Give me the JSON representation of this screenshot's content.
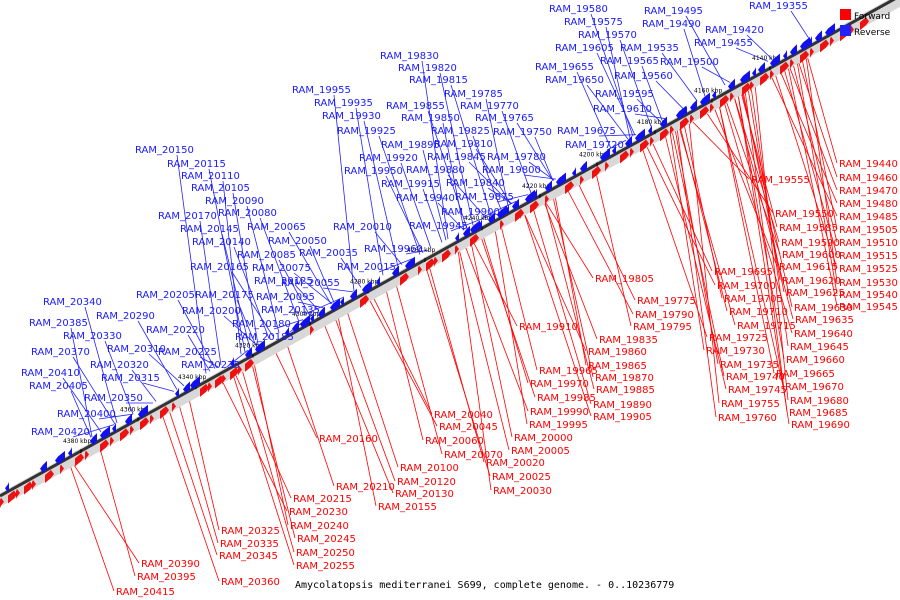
{
  "legend": [
    {
      "label": "Forward",
      "color": "#ff0000"
    },
    {
      "label": "Reverse",
      "color": "#2222ff"
    }
  ],
  "caption": "Amycolatopsis mediterranei S699, complete genome. - 0..10236779",
  "axis_ticks": [
    "4140 kbp",
    "4160 kbp",
    "4180 kbp",
    "4200 kbp",
    "4220 kbp",
    "4240 kbp",
    "4260 kbp",
    "4280 kbp",
    "4300 kbp",
    "4320 kbp",
    "4340 kbp",
    "4360 kbp",
    "4380 kbp"
  ],
  "reverse_genes": [
    "RAM_19355",
    "RAM_19420",
    "RAM_19455",
    "RAM_19495",
    "RAM_19490",
    "RAM_19500",
    "RAM_19535",
    "RAM_19580",
    "RAM_19575",
    "RAM_19570",
    "RAM_19605",
    "RAM_19565",
    "RAM_19560",
    "RAM_19655",
    "RAM_19650",
    "RAM_19595",
    "RAM_19610",
    "RAM_19675",
    "RAM_19720",
    "RAM_19830",
    "RAM_19820",
    "RAM_19815",
    "RAM_19785",
    "RAM_19770",
    "RAM_19765",
    "RAM_19750",
    "RAM_19780",
    "RAM_19800",
    "RAM_19855",
    "RAM_19850",
    "RAM_19825",
    "RAM_19810",
    "RAM_19845",
    "RAM_19840",
    "RAM_19875",
    "RAM_19880",
    "RAM_19955",
    "RAM_19935",
    "RAM_19930",
    "RAM_19925",
    "RAM_19895",
    "RAM_19920",
    "RAM_19950",
    "RAM_19915",
    "RAM_19940",
    "RAM_19900",
    "RAM_19945",
    "RAM_19960",
    "RAM_20150",
    "RAM_20115",
    "RAM_20110",
    "RAM_20105",
    "RAM_20090",
    "RAM_20080",
    "RAM_20170",
    "RAM_20145",
    "RAM_20140",
    "RAM_20065",
    "RAM_20050",
    "RAM_20085",
    "RAM_20075",
    "RAM_20035",
    "RAM_20010",
    "RAM_20015",
    "RAM_20165",
    "RAM_20125",
    "RAM_20055",
    "RAM_20205",
    "RAM_20175",
    "RAM_20095",
    "RAM_20200",
    "RAM_20135",
    "RAM_20220",
    "RAM_20180",
    "RAM_20185",
    "RAM_20225",
    "RAM_20235",
    "RAM_20340",
    "RAM_20290",
    "RAM_20385",
    "RAM_20330",
    "RAM_20310",
    "RAM_20370",
    "RAM_20320",
    "RAM_20315",
    "RAM_20410",
    "RAM_20405",
    "RAM_20350",
    "RAM_20400",
    "RAM_20420"
  ],
  "forward_genes": [
    "RAM_19440",
    "RAM_19460",
    "RAM_19470",
    "RAM_19480",
    "RAM_19485",
    "RAM_19505",
    "RAM_19510",
    "RAM_19515",
    "RAM_19525",
    "RAM_19530",
    "RAM_19540",
    "RAM_19545",
    "RAM_19555",
    "RAM_19550",
    "RAM_19585",
    "RAM_19590",
    "RAM_19600",
    "RAM_19615",
    "RAM_19620",
    "RAM_19625",
    "RAM_19630",
    "RAM_19635",
    "RAM_19640",
    "RAM_19645",
    "RAM_19660",
    "RAM_19665",
    "RAM_19670",
    "RAM_19680",
    "RAM_19685",
    "RAM_19690",
    "RAM_19695",
    "RAM_19700",
    "RAM_19705",
    "RAM_19710",
    "RAM_19715",
    "RAM_19725",
    "RAM_19730",
    "RAM_19735",
    "RAM_19740",
    "RAM_19745",
    "RAM_19755",
    "RAM_19760",
    "RAM_19805",
    "RAM_19775",
    "RAM_19790",
    "RAM_19795",
    "RAM_19910",
    "RAM_19835",
    "RAM_19860",
    "RAM_19865",
    "RAM_19870",
    "RAM_19885",
    "RAM_19890",
    "RAM_19905",
    "RAM_19965",
    "RAM_19970",
    "RAM_19985",
    "RAM_19990",
    "RAM_19995",
    "RAM_20000",
    "RAM_20005",
    "RAM_20040",
    "RAM_20045",
    "RAM_20060",
    "RAM_20070",
    "RAM_20020",
    "RAM_20025",
    "RAM_20030",
    "RAM_20160",
    "RAM_20100",
    "RAM_20120",
    "RAM_20130",
    "RAM_20155",
    "RAM_20210",
    "RAM_20215",
    "RAM_20230",
    "RAM_20240",
    "RAM_20245",
    "RAM_20250",
    "RAM_20255",
    "RAM_20325",
    "RAM_20335",
    "RAM_20345",
    "RAM_20360",
    "RAM_20390",
    "RAM_20395",
    "RAM_20415"
  ]
}
